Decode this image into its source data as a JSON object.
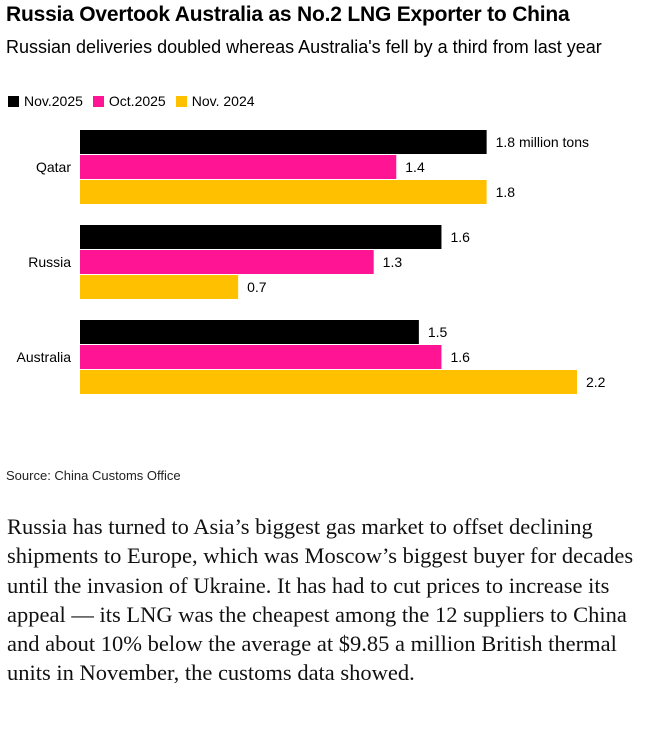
{
  "header": {
    "title": "Russia Overtook Australia as No.2 LNG Exporter to China",
    "subtitle": "Russian deliveries doubled whereas Australia's fell by a third from last year"
  },
  "legend": [
    {
      "label": "Nov.2025",
      "color": "#000000"
    },
    {
      "label": "Oct.2025",
      "color": "#ff1493"
    },
    {
      "label": "Nov. 2024",
      "color": "#ffc000"
    }
  ],
  "chart_data": {
    "type": "bar",
    "orientation": "horizontal",
    "title": "Russia Overtook Australia as No.2 LNG Exporter to China",
    "subtitle": "Russian deliveries doubled whereas Australia's fell by a third from last year",
    "categories": [
      "Qatar",
      "Russia",
      "Australia"
    ],
    "series": [
      {
        "name": "Nov.2025",
        "color": "#000000",
        "values": [
          1.8,
          1.6,
          1.5
        ],
        "labels": [
          "1.8 million tons",
          "1.6",
          "1.5"
        ]
      },
      {
        "name": "Oct.2025",
        "color": "#ff1493",
        "values": [
          1.4,
          1.3,
          1.6
        ],
        "labels": [
          "1.4",
          "1.3",
          "1.6"
        ]
      },
      {
        "name": "Nov. 2024",
        "color": "#ffc000",
        "values": [
          1.8,
          0.7,
          2.2
        ],
        "labels": [
          "1.8",
          "0.7",
          "2.2"
        ]
      }
    ],
    "xlim": [
      0,
      2.2
    ],
    "grid": false,
    "legend_position": "top-left"
  },
  "source": "Source: China Customs Office",
  "body_text": "Russia has turned to Asia’s biggest gas market to offset declining shipments to Europe, which was Moscow’s biggest buyer for decades until the invasion of Ukraine. It has had to cut prices to increase its appeal — its LNG was the cheapest among the 12 suppliers to China and about 10% below the average at $9.85 a million British thermal units in November, the customs data showed."
}
